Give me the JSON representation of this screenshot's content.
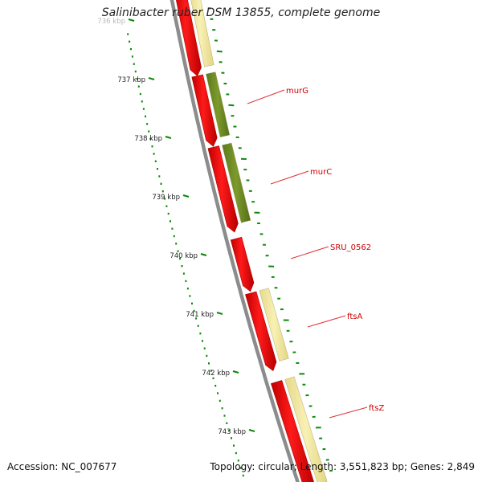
{
  "title": "Salinibacter ruber DSM 13855, complete genome",
  "footer": {
    "accession_label": "Accession:",
    "accession_value": "NC_007677",
    "topology_label": "Topology:",
    "topology_value": "circular",
    "length_label": "Length:",
    "length_value": "3,551,823 bp",
    "genes_label": "Genes:",
    "genes_value": "2,849"
  },
  "ticks": [
    {
      "label": "736 kbp"
    },
    {
      "label": "737 kbp"
    },
    {
      "label": "738 kbp"
    },
    {
      "label": "739 kbp"
    },
    {
      "label": "740 kbp"
    },
    {
      "label": "741 kbp"
    },
    {
      "label": "742 kbp"
    },
    {
      "label": "743 kbp"
    }
  ],
  "gene_labels": [
    {
      "name": "murG"
    },
    {
      "name": "murC"
    },
    {
      "name": "SRU_0562"
    },
    {
      "name": "ftsA"
    },
    {
      "name": "ftsZ"
    }
  ],
  "colors": {
    "backbone": "#8c8c8c",
    "cds": "#ff0000",
    "cds_dark": "#b00000",
    "cog_green": "#6b8e23",
    "cog_yellow": "#f3eaa0",
    "tick_green": "#0a8a0a",
    "label_red": "#cc0000",
    "label_line": "#e03030"
  }
}
